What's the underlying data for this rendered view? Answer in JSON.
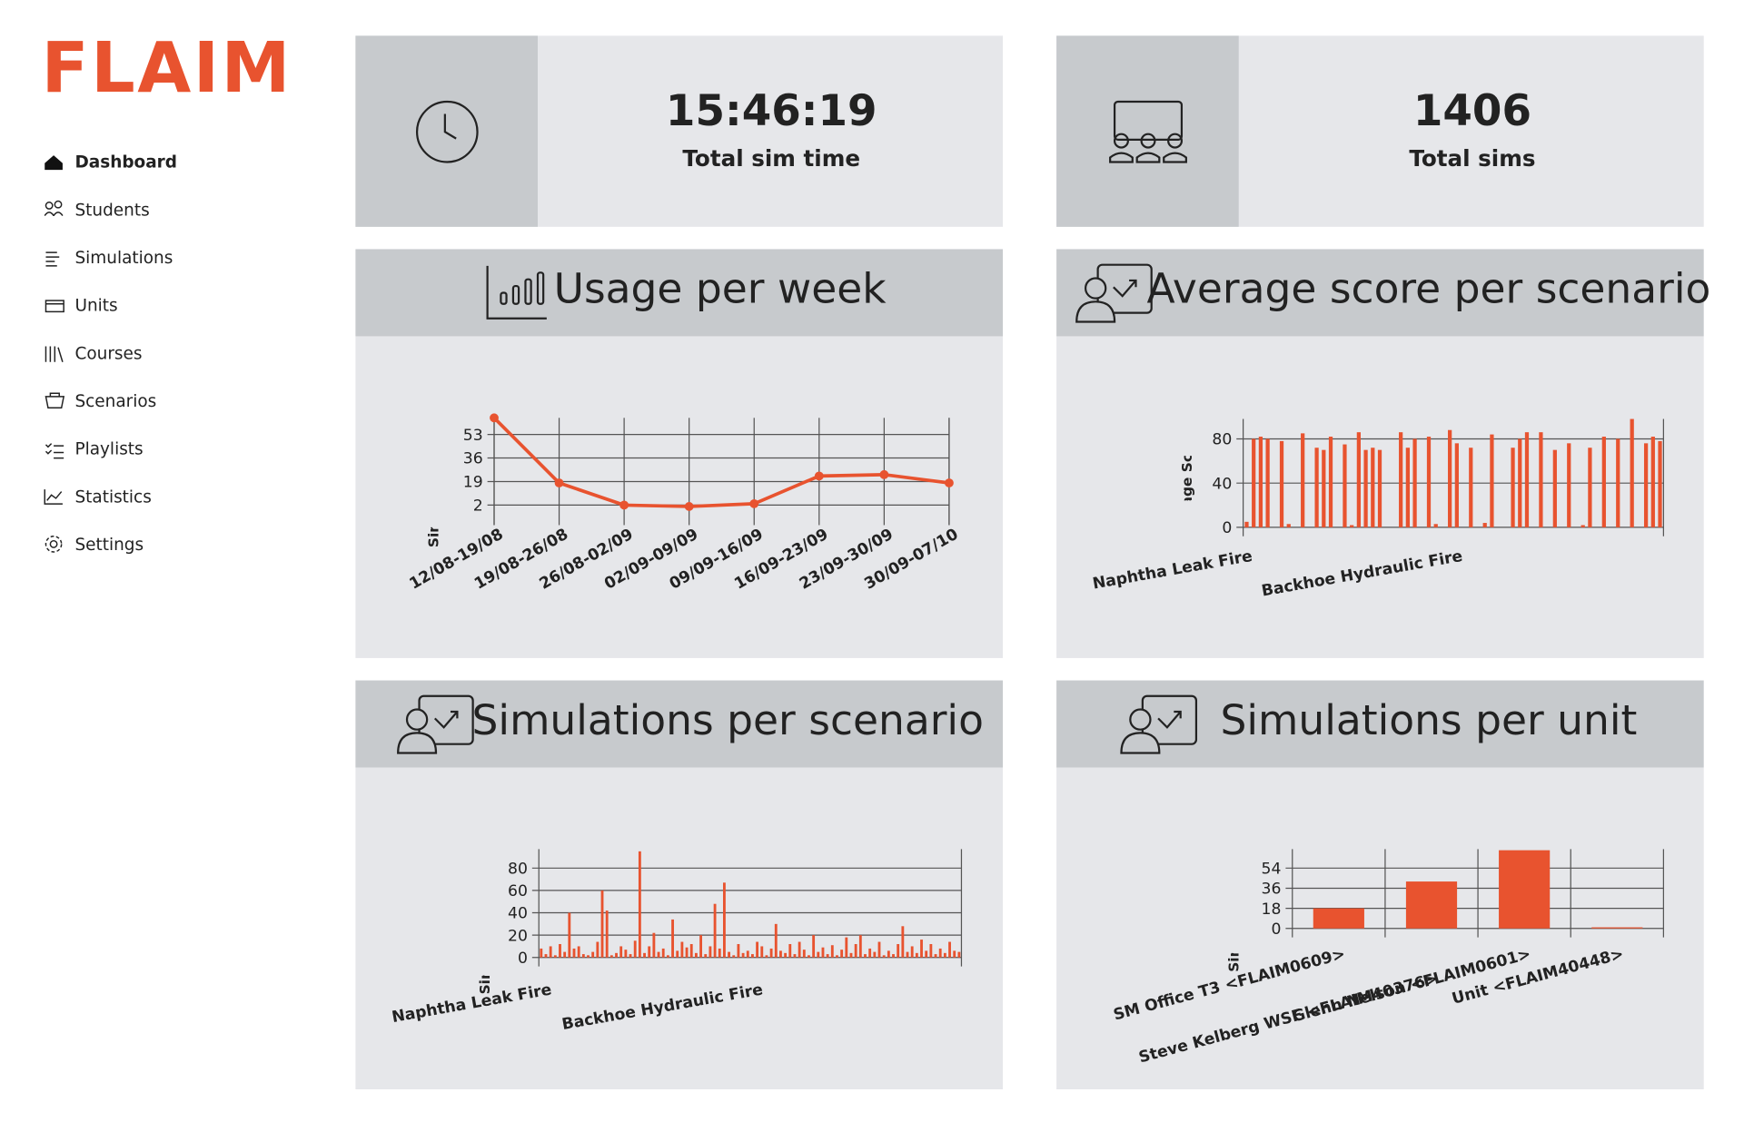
{
  "app": {
    "logo": "FLAIM",
    "nav": [
      "Dashboard",
      "Students",
      "Simulations",
      "Units",
      "Courses",
      "Scenarios",
      "Playlists",
      "Statistics",
      "Settings"
    ]
  },
  "cards": [
    {
      "value": "15:46:19",
      "label": "Total sim time"
    },
    {
      "value": 1406,
      "label": "Total sims"
    }
  ],
  "chart_data": [
    {
      "type": "line",
      "title": "Usage per week",
      "y_label": "Simulations last month",
      "color": "#e8532f",
      "categories": [
        "12/08-19/08",
        "19/08-26/08",
        "26/08-02/09",
        "02/09-09/09",
        "09/09-16/09",
        "16/09-23/09",
        "23/09-30/09",
        "30/09-07/10"
      ],
      "values": [
        65,
        18,
        2,
        1,
        3,
        23,
        24,
        18
      ],
      "ylim": [
        -6,
        65
      ],
      "yticks": [
        2,
        19,
        36,
        53
      ],
      "grid": true
    },
    {
      "type": "bar",
      "title": "Average score per scenario",
      "y_label": "Average Score(%)",
      "color": "#e8532f",
      "categories": [
        "Naphtha Leak Fire",
        null,
        null,
        null,
        null,
        null,
        null,
        null,
        null,
        null,
        null,
        null,
        null,
        null,
        null,
        null,
        null,
        null,
        null,
        null,
        null,
        null,
        null,
        null,
        null,
        null,
        null,
        null,
        null,
        null,
        "Backhoe Hydraulic Fire",
        null,
        null,
        null,
        null,
        null,
        null,
        null,
        null,
        null,
        null,
        null,
        null,
        null,
        null,
        null,
        null,
        null,
        null,
        null,
        null,
        null,
        null,
        null,
        null,
        null,
        null,
        null,
        null,
        null
      ],
      "values": [
        5,
        80,
        82,
        80,
        0,
        78,
        3,
        0,
        85,
        0,
        72,
        70,
        82,
        0,
        75,
        2,
        86,
        70,
        72,
        70,
        0,
        0,
        86,
        72,
        80,
        0,
        82,
        3,
        0,
        88,
        76,
        0,
        72,
        0,
        4,
        84,
        0,
        0,
        72,
        80,
        86,
        0,
        86,
        0,
        70,
        0,
        76,
        0,
        2,
        72,
        0,
        82,
        0,
        80,
        0,
        98,
        0,
        76,
        82,
        78
      ],
      "ylim": [
        0,
        98
      ],
      "yticks": [
        0,
        40,
        80
      ],
      "grid": true
    },
    {
      "type": "bar",
      "title": "Simulations per scenario",
      "y_label": "Simulations last month",
      "color": "#e8532f",
      "categories": [
        null,
        "Naphtha Leak Fire",
        null,
        null,
        null,
        null,
        null,
        null,
        null,
        null,
        null,
        null,
        null,
        null,
        null,
        null,
        null,
        null,
        null,
        null,
        null,
        null,
        null,
        null,
        null,
        null,
        null,
        null,
        null,
        null,
        null,
        null,
        null,
        null,
        null,
        null,
        null,
        null,
        null,
        null,
        null,
        null,
        null,
        null,
        null,
        null,
        "Backhoe Hydraulic Fire",
        null,
        null,
        null,
        null,
        null,
        null,
        null,
        null,
        null,
        null,
        null,
        null,
        null,
        null,
        null,
        null,
        null,
        null,
        null,
        null,
        null,
        null,
        null,
        null,
        null,
        null,
        null,
        null,
        null,
        null,
        null,
        null,
        null,
        null,
        null,
        null,
        null,
        null,
        null,
        null,
        null,
        null,
        null
      ],
      "values": [
        8,
        3,
        10,
        2,
        12,
        5,
        40,
        8,
        10,
        3,
        2,
        5,
        14,
        60,
        42,
        2,
        4,
        10,
        7,
        3,
        15,
        95,
        4,
        10,
        22,
        5,
        8,
        2,
        34,
        6,
        14,
        9,
        12,
        4,
        20,
        3,
        10,
        48,
        8,
        67,
        5,
        2,
        12,
        4,
        6,
        3,
        14,
        10,
        2,
        8,
        30,
        6,
        4,
        12,
        3,
        14,
        7,
        2,
        20,
        5,
        9,
        3,
        11,
        2,
        7,
        18,
        4,
        12,
        20,
        3,
        8,
        5,
        14,
        2,
        6,
        3,
        12,
        28,
        5,
        10,
        4,
        16,
        6,
        12,
        3,
        8,
        4,
        14,
        6,
        5
      ],
      "ylim": [
        0,
        97
      ],
      "yticks": [
        0,
        20,
        40,
        60,
        80
      ],
      "grid": true
    },
    {
      "type": "bar",
      "title": "Simulations per unit",
      "y_label": "Simulations last month",
      "color": "#e8532f",
      "categories": [
        "SM Office T3 <FLAIM0609>",
        "Steve Kelberg WSF <FLAIM40376>",
        "Glenn Nelson <FLAIM0601>",
        "Unit <FLAIM40448>"
      ],
      "values": [
        18,
        42,
        70,
        1
      ],
      "ylim": [
        0,
        71
      ],
      "yticks": [
        0,
        18,
        36,
        54
      ],
      "grid": true
    }
  ]
}
